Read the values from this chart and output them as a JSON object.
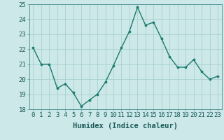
{
  "x": [
    0,
    1,
    2,
    3,
    4,
    5,
    6,
    7,
    8,
    9,
    10,
    11,
    12,
    13,
    14,
    15,
    16,
    17,
    18,
    19,
    20,
    21,
    22,
    23
  ],
  "y": [
    22.1,
    21.0,
    21.0,
    19.4,
    19.7,
    19.1,
    18.2,
    18.6,
    19.0,
    19.8,
    20.9,
    22.1,
    23.2,
    24.8,
    23.6,
    23.8,
    22.7,
    21.5,
    20.8,
    20.8,
    21.3,
    20.5,
    20.0,
    20.2
  ],
  "line_color": "#1a7a6e",
  "marker": "o",
  "marker_size": 2.2,
  "line_width": 1.0,
  "bg_color": "#cce8e8",
  "grid_color": "#aad0d0",
  "xlabel": "Humidex (Indice chaleur)",
  "ylim": [
    18,
    25
  ],
  "xlim": [
    -0.5,
    23.5
  ],
  "yticks": [
    18,
    19,
    20,
    21,
    22,
    23,
    24,
    25
  ],
  "xticks": [
    0,
    1,
    2,
    3,
    4,
    5,
    6,
    7,
    8,
    9,
    10,
    11,
    12,
    13,
    14,
    15,
    16,
    17,
    18,
    19,
    20,
    21,
    22,
    23
  ],
  "xlabel_fontsize": 7.5,
  "tick_fontsize": 6.5
}
